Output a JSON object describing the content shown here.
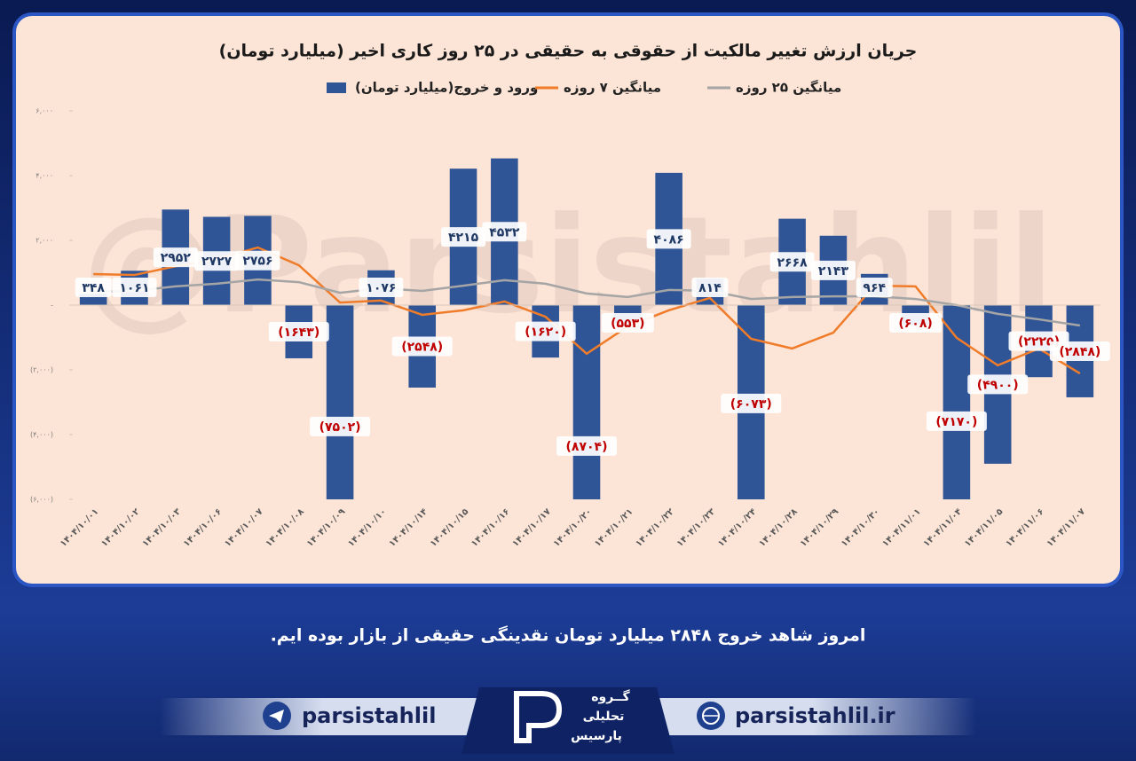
{
  "chart_data": {
    "type": "bar",
    "title": "جریان ارزش تغییر مالکیت از حقوقی به حقیقی در ۲۵ روز کاری اخیر (میلیارد تومان)",
    "categories": [
      "۱۴۰۴/۱۰/۰۱",
      "۱۴۰۴/۱۰/۰۲",
      "۱۴۰۴/۱۰/۰۳",
      "۱۴۰۴/۱۰/۰۶",
      "۱۴۰۴/۱۰/۰۷",
      "۱۴۰۴/۱۰/۰۸",
      "۱۴۰۴/۱۰/۰۹",
      "۱۴۰۴/۱۰/۱۰",
      "۱۴۰۴/۱۰/۱۴",
      "۱۴۰۴/۱۰/۱۵",
      "۱۴۰۴/۱۰/۱۶",
      "۱۴۰۴/۱۰/۱۷",
      "۱۴۰۴/۱۰/۲۰",
      "۱۴۰۴/۱۰/۲۱",
      "۱۴۰۴/۱۰/۲۲",
      "۱۴۰۴/۱۰/۲۳",
      "۱۴۰۴/۱۰/۲۴",
      "۱۴۰۴/۱۰/۲۸",
      "۱۴۰۴/۱۰/۲۹",
      "۱۴۰۴/۱۰/۳۰",
      "۱۴۰۴/۱۱/۰۱",
      "۱۴۰۴/۱۱/۰۴",
      "۱۴۰۴/۱۱/۰۵",
      "۱۴۰۴/۱۱/۰۶",
      "۱۴۰۴/۱۱/۰۷"
    ],
    "series": [
      {
        "name": "ورود و خروج(میلیارد تومان)",
        "type": "bar",
        "color": "#2f5597",
        "values": [
          348,
          1061,
          2952,
          2727,
          2756,
          -1643,
          -7502,
          1076,
          -2548,
          4215,
          4532,
          -1620,
          -8704,
          -553,
          4086,
          814,
          -6073,
          2668,
          2143,
          964,
          -608,
          -7170,
          -4900,
          -2225,
          -2848
        ],
        "value_labels": [
          "۳۴۸",
          "۱۰۶۱",
          "۲۹۵۲",
          "۲۷۲۷",
          "۲۷۵۶",
          "(۱۶۴۳)",
          "(۷۵۰۲)",
          "۱۰۷۶",
          "(۲۵۴۸)",
          "۴۲۱۵",
          "۴۵۳۲",
          "(۱۶۲۰)",
          "(۸۷۰۴)",
          "(۵۵۳)",
          "۴۰۸۶",
          "۸۱۴",
          "(۶۰۷۳)",
          "۲۶۶۸",
          "۲۱۴۳",
          "۹۶۴",
          "(۶۰۸)",
          "(۷۱۷۰)",
          "(۴۹۰۰)",
          "(۲۲۲۵)",
          "(۲۸۴۸)"
        ]
      },
      {
        "name": "میانگین ۷ روزه",
        "type": "line",
        "color": "#f07c2a",
        "values": [
          960,
          930,
          1200,
          1420,
          1780,
          1230,
          80,
          140,
          -300,
          -160,
          110,
          -360,
          -1500,
          -660,
          -160,
          220,
          -1040,
          -1340,
          -850,
          600,
          580,
          -1010,
          -1860,
          -1340,
          -2110
        ]
      },
      {
        "name": "میانگین ۲۵ روزه",
        "type": "line",
        "color": "#a5a5a5",
        "values": [
          410,
          440,
          580,
          660,
          790,
          710,
          380,
          520,
          440,
          600,
          770,
          660,
          360,
          250,
          470,
          440,
          190,
          250,
          270,
          270,
          190,
          0,
          -270,
          -440,
          -630
        ]
      }
    ],
    "ylim": [
      -6000,
      6000
    ],
    "yticks": [
      {
        "value": -6000,
        "label": "(۶,۰۰۰)"
      },
      {
        "value": -4000,
        "label": "(۴,۰۰۰)"
      },
      {
        "value": -2000,
        "label": "(۲,۰۰۰)"
      },
      {
        "value": 0,
        "label": "-"
      },
      {
        "value": 2000,
        "label": "۲,۰۰۰"
      },
      {
        "value": 4000,
        "label": "۴,۰۰۰"
      },
      {
        "value": 6000,
        "label": "۶,۰۰۰"
      }
    ],
    "grid": false
  },
  "watermark": "@Parsistahlil",
  "caption": "امروز شاهد خروج ۲۸۴۸ میلیارد تومان نقدینگی حقیقی از بازار بوده ایم.",
  "footer": {
    "telegram": "parsistahlil",
    "website": "parsistahlil.ir",
    "logo": [
      "گــروه",
      "تحلیلی",
      "پارسیس"
    ]
  }
}
